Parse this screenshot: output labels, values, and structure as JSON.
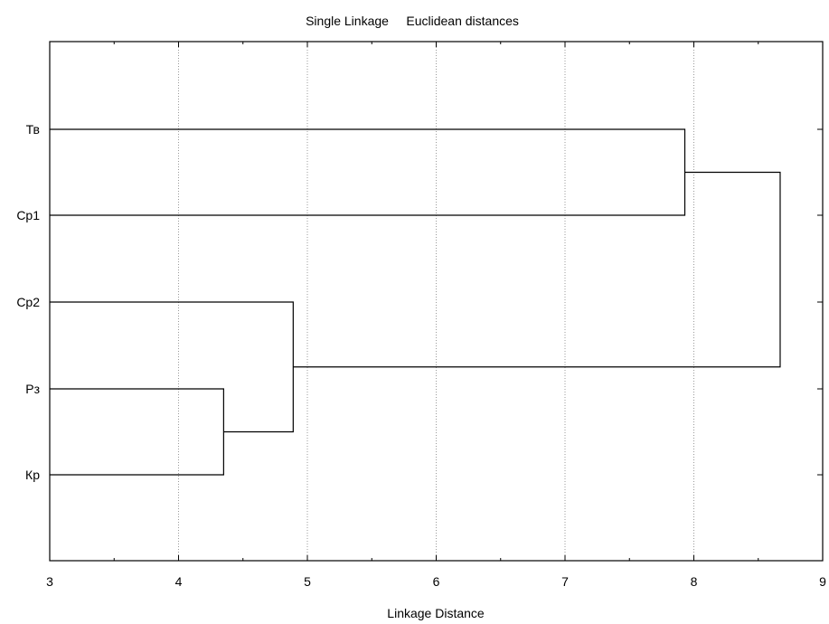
{
  "chart_data": {
    "type": "dendrogram",
    "title": "Single Linkage     Euclidean distances",
    "xlabel": "Linkage Distance",
    "xlim": [
      3,
      9
    ],
    "xticks": [
      "3",
      "4",
      "5",
      "6",
      "7",
      "8",
      "9"
    ],
    "grid": "vertical-dotted",
    "leaves": [
      "Тв",
      "Ср1",
      "Ср2",
      "Рз",
      "Кр"
    ],
    "merges": [
      {
        "a": "Рз",
        "b": "Кр",
        "distance": 4.35
      },
      {
        "a": "Ср2",
        "b": "Рз+Кр",
        "distance": 4.89
      },
      {
        "a": "Тв",
        "b": "Ср1",
        "distance": 7.93
      },
      {
        "a": "Тв+Ср1",
        "b": "Ср2+Рз+Кр",
        "distance": 8.67
      }
    ]
  }
}
